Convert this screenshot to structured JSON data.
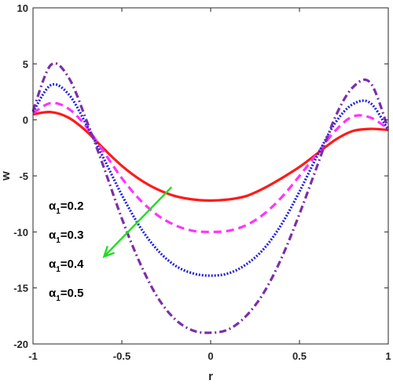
{
  "chart_data": {
    "type": "line",
    "title": "",
    "xlabel": "r",
    "ylabel": "w",
    "xlim": [
      -1,
      1
    ],
    "ylim": [
      -20,
      10
    ],
    "xticks": [
      -1,
      -0.5,
      0,
      0.5,
      1
    ],
    "xtick_labels": [
      "-1",
      "-0.5",
      "0",
      "0.5",
      "1"
    ],
    "yticks": [
      -20,
      -15,
      -10,
      -5,
      0,
      5,
      10
    ],
    "ytick_labels": [
      "-20",
      "-15",
      "-10",
      "-5",
      "0",
      "5",
      "10"
    ],
    "grid": false,
    "x": [
      -1,
      -0.9,
      -0.8,
      -0.7,
      -0.6,
      -0.5,
      -0.4,
      -0.3,
      -0.2,
      -0.1,
      0,
      0.1,
      0.2,
      0.3,
      0.4,
      0.5,
      0.6,
      0.7,
      0.8,
      0.9,
      1
    ],
    "series": [
      {
        "alpha_symbol": "α",
        "alpha_sub": "1",
        "alpha_value": "=0.2",
        "color": "#ff1a1a",
        "dash": "solid",
        "values": [
          0.5,
          0.7,
          0.2,
          -1.0,
          -2.6,
          -4.1,
          -5.3,
          -6.2,
          -6.8,
          -7.1,
          -7.2,
          -7.1,
          -6.8,
          -6.1,
          -5.2,
          -4.2,
          -3.0,
          -1.8,
          -1.0,
          -0.8,
          -0.9
        ]
      },
      {
        "alpha_symbol": "α",
        "alpha_sub": "1",
        "alpha_value": "=0.3",
        "color": "#ff33ff",
        "dash": "dashed",
        "values": [
          0.6,
          1.5,
          1.0,
          -0.6,
          -2.9,
          -5.2,
          -7.1,
          -8.5,
          -9.4,
          -9.9,
          -10.0,
          -9.9,
          -9.4,
          -8.4,
          -6.9,
          -5.0,
          -3.0,
          -1.0,
          0.3,
          0.2,
          -0.8
        ]
      },
      {
        "alpha_symbol": "α",
        "alpha_sub": "1",
        "alpha_value": "=0.4",
        "color": "#1f1fdf",
        "dash": "dotted",
        "values": [
          0.7,
          3.1,
          2.3,
          -0.4,
          -3.5,
          -6.7,
          -9.5,
          -11.6,
          -13.0,
          -13.7,
          -13.9,
          -13.7,
          -12.9,
          -11.5,
          -9.3,
          -6.4,
          -3.2,
          -0.3,
          1.4,
          1.5,
          -0.9
        ]
      },
      {
        "alpha_symbol": "α",
        "alpha_sub": "1",
        "alpha_value": "=0.5",
        "color": "#7b2fa8",
        "dash": "dashdot",
        "values": [
          0.8,
          4.9,
          3.8,
          0.0,
          -4.3,
          -8.8,
          -12.7,
          -15.8,
          -17.8,
          -18.8,
          -19.0,
          -18.7,
          -17.5,
          -15.4,
          -12.3,
          -8.4,
          -4.1,
          0.2,
          2.9,
          3.3,
          -0.8
        ]
      }
    ],
    "annotation_arrow": {
      "color": "#22dd22",
      "from": [
        -0.22,
        -6.0
      ],
      "to": [
        -0.6,
        -12.2
      ]
    }
  }
}
